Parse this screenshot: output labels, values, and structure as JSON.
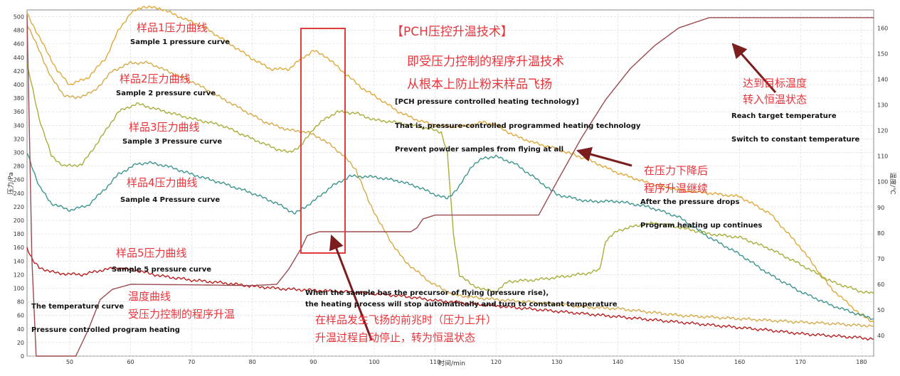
{
  "chart_data": {
    "type": "line",
    "xlabel": "时间/min",
    "ylabel_left": "压力/Pa",
    "ylabel_right": "温度/℃",
    "xlim": [
      43,
      182
    ],
    "ylim_left": [
      0,
      510
    ],
    "ylim_right": [
      32,
      167
    ],
    "x_ticks": [
      50,
      60,
      70,
      80,
      90,
      100,
      110,
      120,
      130,
      140,
      150,
      160,
      170,
      180
    ],
    "y_left_ticks": [
      0,
      20,
      40,
      60,
      80,
      100,
      120,
      140,
      160,
      180,
      200,
      220,
      240,
      260,
      280,
      300,
      320,
      340,
      360,
      380,
      400,
      420,
      440,
      460,
      480,
      500
    ],
    "y_right_ticks": [
      40,
      50,
      60,
      70,
      80,
      90,
      100,
      110,
      120,
      130,
      140,
      150,
      160
    ],
    "grid": true,
    "series": [
      {
        "name": "样品1压力曲线",
        "axis": "left",
        "color": "#e0a93a",
        "points": [
          [
            43,
            505
          ],
          [
            45,
            470
          ],
          [
            48,
            420
          ],
          [
            50,
            400
          ],
          [
            53,
            410
          ],
          [
            56,
            440
          ],
          [
            58,
            480
          ],
          [
            60,
            505
          ],
          [
            62,
            515
          ],
          [
            65,
            512
          ],
          [
            68,
            500
          ],
          [
            72,
            485
          ],
          [
            76,
            462
          ],
          [
            80,
            438
          ],
          [
            83,
            423
          ],
          [
            86,
            423
          ],
          [
            88,
            438
          ],
          [
            90,
            450
          ],
          [
            92,
            442
          ],
          [
            95,
            418
          ],
          [
            98,
            395
          ],
          [
            101,
            378
          ],
          [
            104,
            360
          ],
          [
            107,
            348
          ],
          [
            110,
            340
          ],
          [
            113,
            338
          ],
          [
            116,
            340
          ],
          [
            118,
            345
          ],
          [
            120,
            340
          ],
          [
            123,
            325
          ],
          [
            126,
            315
          ],
          [
            130,
            305
          ],
          [
            135,
            290
          ],
          [
            140,
            270
          ],
          [
            145,
            255
          ],
          [
            150,
            245
          ],
          [
            155,
            240
          ],
          [
            160,
            235
          ],
          [
            165,
            210
          ],
          [
            170,
            160
          ],
          [
            175,
            100
          ],
          [
            180,
            60
          ],
          [
            182,
            50
          ]
        ]
      },
      {
        "name": "样品2压力曲线",
        "axis": "left",
        "color": "#d6aa4a",
        "points": [
          [
            43,
            490
          ],
          [
            45,
            450
          ],
          [
            47,
            410
          ],
          [
            49,
            385
          ],
          [
            51,
            380
          ],
          [
            54,
            390
          ],
          [
            57,
            420
          ],
          [
            60,
            432
          ],
          [
            63,
            432
          ],
          [
            66,
            420
          ],
          [
            70,
            405
          ],
          [
            74,
            385
          ],
          [
            78,
            365
          ],
          [
            82,
            345
          ],
          [
            86,
            333
          ],
          [
            89,
            330
          ],
          [
            91,
            322
          ],
          [
            93,
            310
          ],
          [
            95,
            295
          ],
          [
            97,
            275
          ],
          [
            99,
            230
          ],
          [
            101,
            195
          ],
          [
            103,
            165
          ],
          [
            105,
            140
          ],
          [
            107,
            125
          ],
          [
            109,
            110
          ],
          [
            111,
            100
          ],
          [
            113,
            90
          ],
          [
            115,
            88
          ],
          [
            118,
            85
          ],
          [
            122,
            82
          ],
          [
            128,
            78
          ],
          [
            135,
            72
          ],
          [
            140,
            70
          ],
          [
            150,
            60
          ],
          [
            160,
            55
          ],
          [
            170,
            50
          ],
          [
            175,
            48
          ],
          [
            180,
            45
          ],
          [
            182,
            45
          ]
        ]
      },
      {
        "name": "样品3压力曲线",
        "axis": "left",
        "color": "#a9ad3a",
        "points": [
          [
            43,
            430
          ],
          [
            45,
            350
          ],
          [
            47,
            295
          ],
          [
            49,
            280
          ],
          [
            52,
            282
          ],
          [
            55,
            320
          ],
          [
            58,
            360
          ],
          [
            61,
            372
          ],
          [
            65,
            362
          ],
          [
            70,
            350
          ],
          [
            75,
            340
          ],
          [
            80,
            320
          ],
          [
            84,
            305
          ],
          [
            86,
            300
          ],
          [
            88,
            310
          ],
          [
            90,
            335
          ],
          [
            92,
            350
          ],
          [
            94,
            360
          ],
          [
            97,
            358
          ],
          [
            100,
            348
          ],
          [
            103,
            345
          ],
          [
            106,
            340
          ],
          [
            109,
            335
          ],
          [
            111,
            330
          ],
          [
            112,
            300
          ],
          [
            113,
            180
          ],
          [
            114,
            120
          ],
          [
            116,
            105
          ],
          [
            118,
            98
          ],
          [
            120,
            95
          ],
          [
            122,
            110
          ],
          [
            126,
            112
          ],
          [
            130,
            116
          ],
          [
            135,
            122
          ],
          [
            137,
            127
          ],
          [
            138,
            170
          ],
          [
            140,
            185
          ],
          [
            143,
            192
          ],
          [
            146,
            196
          ],
          [
            150,
            190
          ],
          [
            155,
            180
          ],
          [
            160,
            175
          ],
          [
            165,
            158
          ],
          [
            170,
            135
          ],
          [
            175,
            110
          ],
          [
            180,
            95
          ],
          [
            182,
            92
          ]
        ]
      },
      {
        "name": "样品4压力曲线",
        "axis": "left",
        "color": "#3d958e",
        "points": [
          [
            43,
            300
          ],
          [
            45,
            250
          ],
          [
            47,
            225
          ],
          [
            50,
            215
          ],
          [
            53,
            222
          ],
          [
            56,
            248
          ],
          [
            58,
            268
          ],
          [
            61,
            283
          ],
          [
            63,
            285
          ],
          [
            66,
            280
          ],
          [
            70,
            268
          ],
          [
            75,
            255
          ],
          [
            80,
            240
          ],
          [
            84,
            225
          ],
          [
            87,
            210
          ],
          [
            90,
            228
          ],
          [
            93,
            250
          ],
          [
            96,
            265
          ],
          [
            100,
            264
          ],
          [
            104,
            258
          ],
          [
            107,
            250
          ],
          [
            110,
            238
          ],
          [
            112,
            232
          ],
          [
            114,
            250
          ],
          [
            116,
            280
          ],
          [
            118,
            292
          ],
          [
            120,
            294
          ],
          [
            123,
            284
          ],
          [
            126,
            265
          ],
          [
            130,
            238
          ],
          [
            135,
            228
          ],
          [
            140,
            228
          ],
          [
            145,
            220
          ],
          [
            150,
            205
          ],
          [
            155,
            175
          ],
          [
            160,
            150
          ],
          [
            165,
            120
          ],
          [
            170,
            95
          ],
          [
            175,
            75
          ],
          [
            180,
            60
          ],
          [
            182,
            55
          ]
        ]
      },
      {
        "name": "样品5压力曲线",
        "axis": "left",
        "color": "#b81f1f",
        "points": [
          [
            43,
            160
          ],
          [
            44,
            140
          ],
          [
            45,
            130
          ],
          [
            48,
            122
          ],
          [
            52,
            120
          ],
          [
            56,
            128
          ],
          [
            58,
            130
          ],
          [
            61,
            126
          ],
          [
            65,
            118
          ],
          [
            70,
            112
          ],
          [
            75,
            108
          ],
          [
            80,
            103
          ],
          [
            85,
            99
          ],
          [
            90,
            97
          ],
          [
            95,
            95
          ],
          [
            100,
            92
          ],
          [
            105,
            88
          ],
          [
            110,
            82
          ],
          [
            115,
            78
          ],
          [
            120,
            74
          ],
          [
            125,
            70
          ],
          [
            130,
            66
          ],
          [
            135,
            62
          ],
          [
            140,
            58
          ],
          [
            145,
            54
          ],
          [
            150,
            50
          ],
          [
            155,
            46
          ],
          [
            160,
            42
          ],
          [
            165,
            38
          ],
          [
            170,
            33
          ],
          [
            175,
            30
          ],
          [
            180,
            27
          ],
          [
            182,
            25
          ]
        ]
      },
      {
        "name": "温度曲线",
        "axis": "right",
        "color": "#9b4a4f",
        "points": [
          [
            43,
            165
          ],
          [
            43.8,
            70
          ],
          [
            44.5,
            32
          ],
          [
            51,
            32
          ],
          [
            53,
            42
          ],
          [
            55,
            54
          ],
          [
            57,
            58
          ],
          [
            60,
            60
          ],
          [
            70,
            59.8
          ],
          [
            80,
            59.5
          ],
          [
            84,
            60
          ],
          [
            86,
            66
          ],
          [
            88,
            74
          ],
          [
            89,
            79
          ],
          [
            91,
            80.5
          ],
          [
            100,
            80.5
          ],
          [
            106,
            80.5
          ],
          [
            107,
            82
          ],
          [
            108,
            85.5
          ],
          [
            110,
            87
          ],
          [
            127,
            87
          ],
          [
            130,
            100
          ],
          [
            134,
            117
          ],
          [
            138,
            132
          ],
          [
            142,
            144
          ],
          [
            146,
            153
          ],
          [
            150,
            160
          ],
          [
            155,
            164
          ],
          [
            160,
            164
          ],
          [
            170,
            164
          ],
          [
            180,
            164
          ],
          [
            182,
            164
          ]
        ]
      }
    ]
  },
  "labels": {
    "title_cn": "【PCH压控升温技术】",
    "desc_cn_1": "即受压力控制的程序升温技术",
    "desc_cn_2": "从根本上防止粉末样品飞扬",
    "desc_en_1": "[PCH pressure controlled heating technology]",
    "desc_en_2": "That is, pressure-controlled programmed heating technology",
    "desc_en_3": "Prevent powder samples from flying at all",
    "s1_cn": "样品1压力曲线",
    "s1_en": "Sample 1 pressure curve",
    "s2_cn": "样品2压力曲线",
    "s2_en": "Sample 2 pressure curve",
    "s3_cn": "样品3压力曲线",
    "s3_en": "Sample 3 Pressure curve",
    "s4_cn": "样品4压力曲线",
    "s4_en": "Sample 4 Pressure curve",
    "s5_cn": "样品5压力曲线",
    "s5_en": "Sample 5 pressure curve",
    "temp_cn_1": "温度曲线",
    "temp_cn_2": "受压力控制的程序升温",
    "temp_en_1": "The temperature curve",
    "temp_en_2": "Pressure controlled program heating",
    "target_cn_1": "达到目标温度",
    "target_cn_2": "转入恒温状态",
    "target_en_1": "Reach target temperature",
    "target_en_2": "Switch to constant temperature",
    "drop_cn_1": "在压力下降后",
    "drop_cn_2": "程序升温继续",
    "drop_en_1": "After the pressure drops",
    "drop_en_2": "Program heating up continues",
    "precursor_en_1": "When the sample has the precursor of flying (pressure rise),",
    "precursor_en_2": "the heating process will stop automatically and turn to constant temperature",
    "precursor_cn_1": "在样品发生飞扬的前兆时（压力上升）",
    "precursor_cn_2": "升温过程自动停止，转为恒温状态"
  }
}
